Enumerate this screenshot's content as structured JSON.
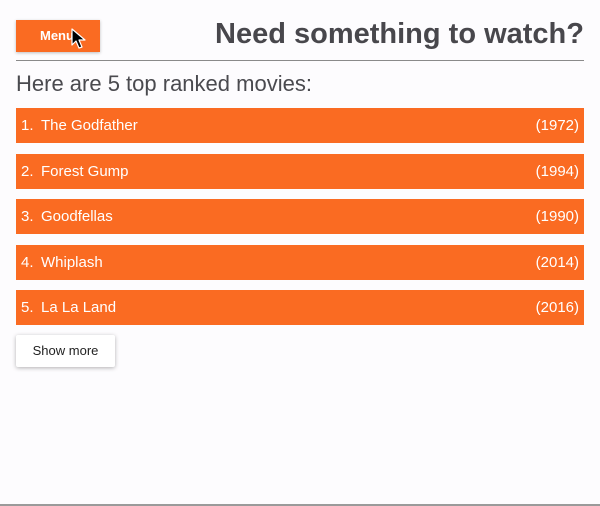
{
  "header": {
    "menu_label": "Menu",
    "title": "Need something to watch?"
  },
  "main": {
    "subtitle": "Here are 5 top ranked movies:",
    "movies": [
      {
        "rank": "1.",
        "title": "The Godfather",
        "year": "(1972)"
      },
      {
        "rank": "2.",
        "title": "Forest Gump",
        "year": "(1994)"
      },
      {
        "rank": "3.",
        "title": "Goodfellas",
        "year": "(1990)"
      },
      {
        "rank": "4.",
        "title": "Whiplash",
        "year": "(2014)"
      },
      {
        "rank": "5.",
        "title": "La La Land",
        "year": "(2016)"
      }
    ],
    "show_more_label": "Show more"
  },
  "colors": {
    "accent": "#fa6b22",
    "title_text": "#48474c",
    "background": "#fdfcfe"
  },
  "icons": {
    "cursor": "mouse-pointer-icon"
  }
}
